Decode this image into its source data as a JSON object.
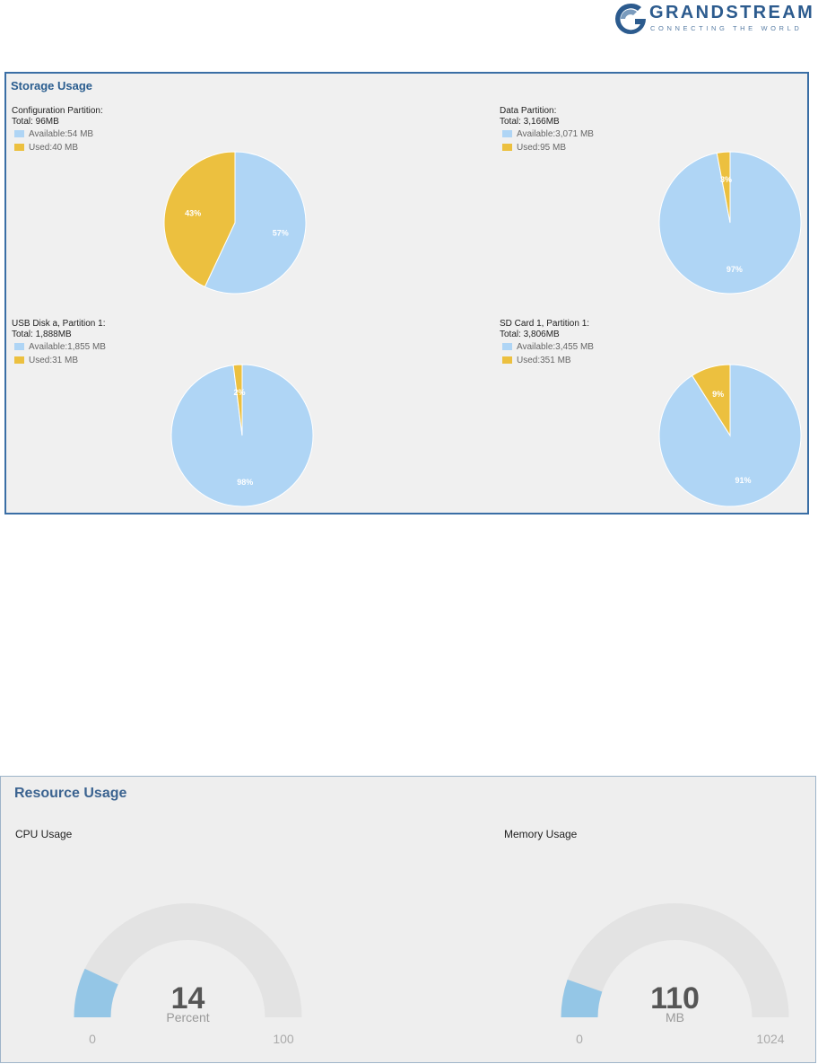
{
  "logo": {
    "brand": "GRANDSTREAM",
    "tagline": "CONNECTING THE WORLD",
    "icon": "grandstream-logo-icon"
  },
  "storage": {
    "title": "Storage Usage",
    "colors": {
      "available": "#afd5f5",
      "used": "#ecc03f",
      "border": "#3a6ea5"
    },
    "partitions": [
      {
        "name": "Configuration Partition:",
        "total": "Total: 96MB",
        "available_label": "Available:54 MB",
        "used_label": "Used:40 MB",
        "available_pct": 57,
        "used_pct": 43,
        "available_text": "57%",
        "used_text": "43%"
      },
      {
        "name": "Data Partition:",
        "total": "Total: 3,166MB",
        "available_label": "Available:3,071 MB",
        "used_label": "Used:95 MB",
        "available_pct": 97,
        "used_pct": 3,
        "available_text": "97%",
        "used_text": "3%"
      },
      {
        "name": "USB Disk a, Partition 1:",
        "total": "Total: 1,888MB",
        "available_label": "Available:1,855 MB",
        "used_label": "Used:31 MB",
        "available_pct": 98,
        "used_pct": 2,
        "available_text": "98%",
        "used_text": "2%"
      },
      {
        "name": "SD Card 1, Partition 1:",
        "total": "Total: 3,806MB",
        "available_label": "Available:3,455 MB",
        "used_label": "Used:351 MB",
        "available_pct": 91,
        "used_pct": 9,
        "available_text": "91%",
        "used_text": "9%"
      }
    ]
  },
  "resource": {
    "title": "Resource Usage",
    "colors": {
      "track": "#e3e3e3",
      "fill": "#94c6e6"
    },
    "gauges": [
      {
        "title": "CPU Usage",
        "value": 14,
        "value_text": "14",
        "unit": "Percent",
        "min": 0,
        "max": 100,
        "min_text": "0",
        "max_text": "100"
      },
      {
        "title": "Memory Usage",
        "value": 110,
        "value_text": "110",
        "unit": "MB",
        "min": 0,
        "max": 1024,
        "min_text": "0",
        "max_text": "1024"
      }
    ]
  }
}
